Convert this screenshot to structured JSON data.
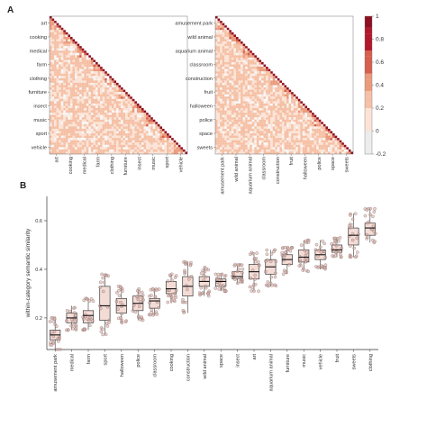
{
  "panels": {
    "a_label": "A",
    "b_label": "B"
  },
  "colors": {
    "scale": [
      "#f7f7f7",
      "#fbe3d6",
      "#f5c0a5",
      "#ea9b7c",
      "#d6604d",
      "#b2182b",
      "#8e0f22"
    ],
    "box_fill": "#f4dcd6",
    "box_stroke": "#3a3a3a",
    "point_fill": "#d8b3ad",
    "point_stroke": "#8b6b66"
  },
  "chart_data": [
    {
      "type": "heatmap",
      "panel": "A-left",
      "tick_labels": [
        "art",
        "cooking",
        "medical",
        "farm",
        "clothing",
        "furniture",
        "insect",
        "music",
        "sport",
        "vehicle"
      ],
      "triangle": "lower",
      "colorbar": {
        "ticks": [
          "1",
          "0.8",
          "0.6",
          "0.4",
          "0.2",
          "0",
          "-0.2"
        ],
        "range": [
          -0.2,
          1
        ]
      }
    },
    {
      "type": "heatmap",
      "panel": "A-right",
      "tick_labels": [
        "amusement park",
        "wild animal",
        "aquarium animal",
        "classroom",
        "construction",
        "fruit",
        "halloween",
        "police",
        "space",
        "sweets"
      ],
      "triangle": "lower",
      "colorbar": {
        "ticks": [
          "1",
          "0.8",
          "0.6",
          "0.4",
          "0.2",
          "0",
          "-0.2"
        ],
        "range": [
          -0.2,
          1
        ]
      }
    },
    {
      "type": "box",
      "panel": "B",
      "ylabel": "within-category semantic similarity",
      "yticks": [
        "0.2",
        "0.4",
        "0.6"
      ],
      "ylim": [
        0.07,
        0.7
      ],
      "categories": [
        "amusement park",
        "medical",
        "farm",
        "sport",
        "halloween",
        "police",
        "classroom",
        "cooking",
        "construction",
        "wild animal",
        "space",
        "insect",
        "art",
        "aquarium animal",
        "furniture",
        "music",
        "vehicle",
        "fruit",
        "sweets",
        "clothing"
      ],
      "boxes": [
        {
          "q1": 0.11,
          "median": 0.13,
          "q3": 0.15,
          "lo": 0.07,
          "hi": 0.2
        },
        {
          "q1": 0.18,
          "median": 0.2,
          "q3": 0.22,
          "lo": 0.15,
          "hi": 0.25
        },
        {
          "q1": 0.18,
          "median": 0.21,
          "q3": 0.23,
          "lo": 0.15,
          "hi": 0.28
        },
        {
          "q1": 0.19,
          "median": 0.25,
          "q3": 0.33,
          "lo": 0.13,
          "hi": 0.38
        },
        {
          "q1": 0.22,
          "median": 0.25,
          "q3": 0.28,
          "lo": 0.18,
          "hi": 0.33
        },
        {
          "q1": 0.23,
          "median": 0.26,
          "q3": 0.29,
          "lo": 0.19,
          "hi": 0.32
        },
        {
          "q1": 0.24,
          "median": 0.27,
          "q3": 0.28,
          "lo": 0.21,
          "hi": 0.32
        },
        {
          "q1": 0.3,
          "median": 0.32,
          "q3": 0.35,
          "lo": 0.26,
          "hi": 0.38
        },
        {
          "q1": 0.29,
          "median": 0.33,
          "q3": 0.37,
          "lo": 0.22,
          "hi": 0.43
        },
        {
          "q1": 0.33,
          "median": 0.35,
          "q3": 0.37,
          "lo": 0.29,
          "hi": 0.41
        },
        {
          "q1": 0.33,
          "median": 0.35,
          "q3": 0.36,
          "lo": 0.31,
          "hi": 0.38
        },
        {
          "q1": 0.36,
          "median": 0.37,
          "q3": 0.39,
          "lo": 0.34,
          "hi": 0.42
        },
        {
          "q1": 0.36,
          "median": 0.39,
          "q3": 0.42,
          "lo": 0.31,
          "hi": 0.47
        },
        {
          "q1": 0.38,
          "median": 0.41,
          "q3": 0.44,
          "lo": 0.33,
          "hi": 0.48
        },
        {
          "q1": 0.42,
          "median": 0.44,
          "q3": 0.46,
          "lo": 0.38,
          "hi": 0.49
        },
        {
          "q1": 0.43,
          "median": 0.45,
          "q3": 0.48,
          "lo": 0.39,
          "hi": 0.52
        },
        {
          "q1": 0.44,
          "median": 0.46,
          "q3": 0.48,
          "lo": 0.4,
          "hi": 0.52
        },
        {
          "q1": 0.47,
          "median": 0.48,
          "q3": 0.5,
          "lo": 0.45,
          "hi": 0.53
        },
        {
          "q1": 0.5,
          "median": 0.54,
          "q3": 0.57,
          "lo": 0.45,
          "hi": 0.63
        },
        {
          "q1": 0.54,
          "median": 0.57,
          "q3": 0.59,
          "lo": 0.51,
          "hi": 0.65
        }
      ]
    }
  ]
}
